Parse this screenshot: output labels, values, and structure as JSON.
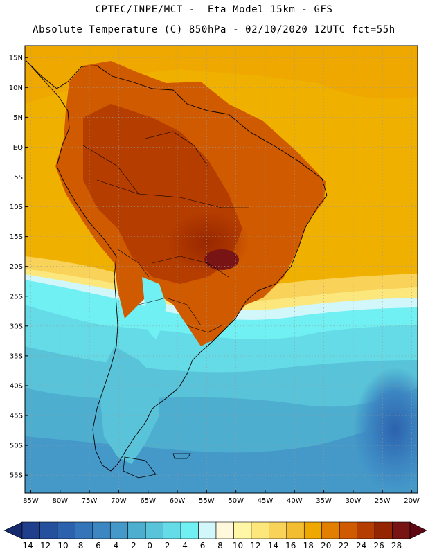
{
  "header": {
    "line1": "CPTEC/INPE/MCT -  Eta Model 15km - GFS",
    "line2": "Absolute Temperature (C) 850hPa - 02/10/2020 12UTC fct=55h"
  },
  "map": {
    "lon_range": [
      -86,
      -19
    ],
    "lat_range": [
      -58,
      17
    ],
    "lat_ticks": [
      {
        "value": 15,
        "label": "15N"
      },
      {
        "value": 10,
        "label": "10N"
      },
      {
        "value": 5,
        "label": "5N"
      },
      {
        "value": 0,
        "label": "EQ"
      },
      {
        "value": -5,
        "label": "5S"
      },
      {
        "value": -10,
        "label": "10S"
      },
      {
        "value": -15,
        "label": "15S"
      },
      {
        "value": -20,
        "label": "20S"
      },
      {
        "value": -25,
        "label": "25S"
      },
      {
        "value": -30,
        "label": "30S"
      },
      {
        "value": -35,
        "label": "35S"
      },
      {
        "value": -40,
        "label": "40S"
      },
      {
        "value": -45,
        "label": "45S"
      },
      {
        "value": -50,
        "label": "50S"
      },
      {
        "value": -55,
        "label": "55S"
      }
    ],
    "lon_ticks": [
      {
        "value": -85,
        "label": "85W"
      },
      {
        "value": -80,
        "label": "80W"
      },
      {
        "value": -75,
        "label": "75W"
      },
      {
        "value": -70,
        "label": "70W"
      },
      {
        "value": -65,
        "label": "65W"
      },
      {
        "value": -60,
        "label": "60W"
      },
      {
        "value": -55,
        "label": "55W"
      },
      {
        "value": -50,
        "label": "50W"
      },
      {
        "value": -45,
        "label": "45W"
      },
      {
        "value": -40,
        "label": "40W"
      },
      {
        "value": -35,
        "label": "35W"
      },
      {
        "value": -30,
        "label": "30W"
      },
      {
        "value": -25,
        "label": "25W"
      },
      {
        "value": -20,
        "label": "20W"
      }
    ],
    "ocean_color": "#f0b000",
    "continent_outline_color": "#000000",
    "grid_color": "#9a9a9a"
  },
  "colorbar": {
    "labels": [
      "-14",
      "-12",
      "-10",
      "-8",
      "-6",
      "-4",
      "-2",
      "0",
      "2",
      "4",
      "6",
      "8",
      "10",
      "12",
      "14",
      "16",
      "18",
      "20",
      "22",
      "24",
      "26",
      "28"
    ],
    "colors": [
      "#1f3f8c",
      "#25509d",
      "#2c62ad",
      "#3474b8",
      "#3c86c2",
      "#4499c9",
      "#4daed0",
      "#59c4d9",
      "#64dbe6",
      "#70f0f2",
      "#d2f7fa",
      "#fff8dc",
      "#fff7a6",
      "#fce77d",
      "#f8d259",
      "#f3bd32",
      "#efa800",
      "#e27e00",
      "#d05a00",
      "#b53d00",
      "#952500",
      "#781414"
    ],
    "end_low": "#162a6e",
    "end_high": "#5e0814"
  }
}
